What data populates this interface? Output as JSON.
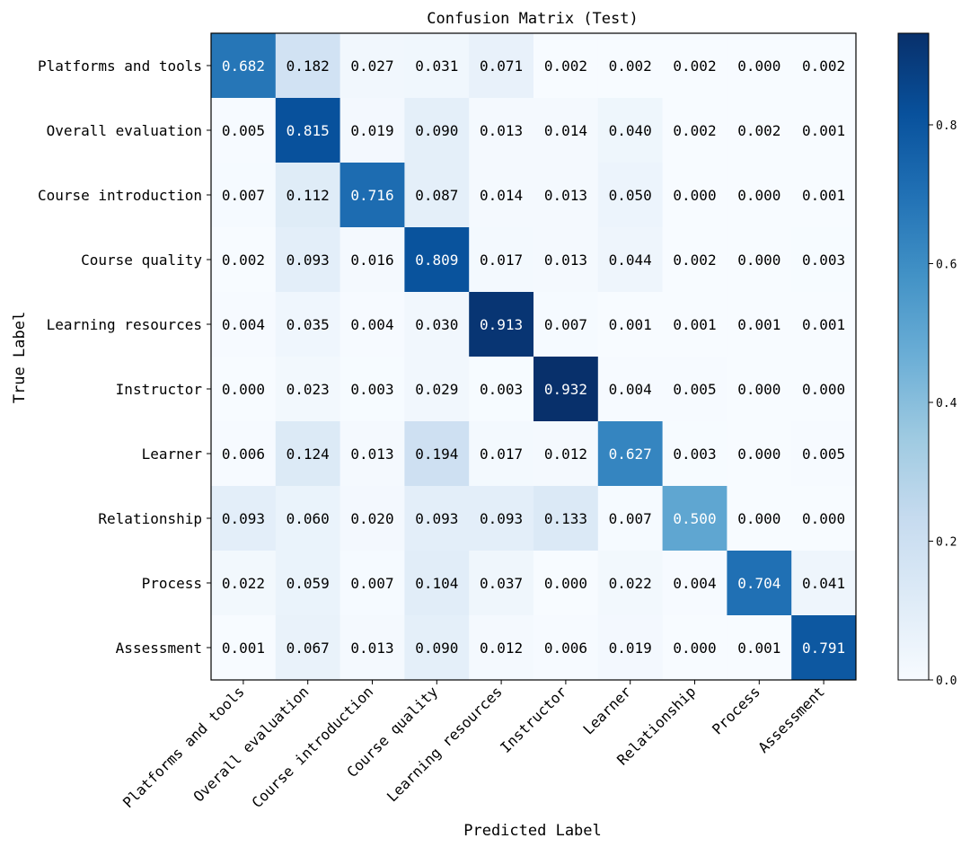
{
  "chart_data": {
    "type": "heatmap",
    "title": "Confusion Matrix (Test)",
    "xlabel": "Predicted Label",
    "ylabel": "True Label",
    "x_categories": [
      "Platforms and tools",
      "Overall evaluation",
      "Course introduction",
      "Course quality",
      "Learning resources",
      "Instructor",
      "Learner",
      "Relationship",
      "Process",
      "Assessment"
    ],
    "y_categories": [
      "Platforms and tools",
      "Overall evaluation",
      "Course introduction",
      "Course quality",
      "Learning resources",
      "Instructor",
      "Learner",
      "Relationship",
      "Process",
      "Assessment"
    ],
    "values": [
      [
        "0.682",
        "0.182",
        "0.027",
        "0.031",
        "0.071",
        "0.002",
        "0.002",
        "0.002",
        "0.000",
        "0.002"
      ],
      [
        "0.005",
        "0.815",
        "0.019",
        "0.090",
        "0.013",
        "0.014",
        "0.040",
        "0.002",
        "0.002",
        "0.001"
      ],
      [
        "0.007",
        "0.112",
        "0.716",
        "0.087",
        "0.014",
        "0.013",
        "0.050",
        "0.000",
        "0.000",
        "0.001"
      ],
      [
        "0.002",
        "0.093",
        "0.016",
        "0.809",
        "0.017",
        "0.013",
        "0.044",
        "0.002",
        "0.000",
        "0.003"
      ],
      [
        "0.004",
        "0.035",
        "0.004",
        "0.030",
        "0.913",
        "0.007",
        "0.001",
        "0.001",
        "0.001",
        "0.001"
      ],
      [
        "0.000",
        "0.023",
        "0.003",
        "0.029",
        "0.003",
        "0.932",
        "0.004",
        "0.005",
        "0.000",
        "0.000"
      ],
      [
        "0.006",
        "0.124",
        "0.013",
        "0.194",
        "0.017",
        "0.012",
        "0.627",
        "0.003",
        "0.000",
        "0.005"
      ],
      [
        "0.093",
        "0.060",
        "0.020",
        "0.093",
        "0.093",
        "0.133",
        "0.007",
        "0.500",
        "0.000",
        "0.000"
      ],
      [
        "0.022",
        "0.059",
        "0.007",
        "0.104",
        "0.037",
        "0.000",
        "0.022",
        "0.004",
        "0.704",
        "0.041"
      ],
      [
        "0.001",
        "0.067",
        "0.013",
        "0.090",
        "0.012",
        "0.006",
        "0.019",
        "0.000",
        "0.001",
        "0.791"
      ]
    ],
    "colormap": "Blues",
    "color_range": [
      0,
      0.932
    ],
    "colorbar_ticks": [
      "0.0",
      "0.2",
      "0.4",
      "0.6",
      "0.8"
    ],
    "colorbar_tick_values": [
      0,
      0.2,
      0.4,
      0.6,
      0.8
    ],
    "colors": {
      "low": "#f7fbff",
      "high": "#08306b",
      "text_dark": "#000000",
      "text_light": "#ffffff"
    },
    "grid": false,
    "colorbar_position": "right"
  }
}
